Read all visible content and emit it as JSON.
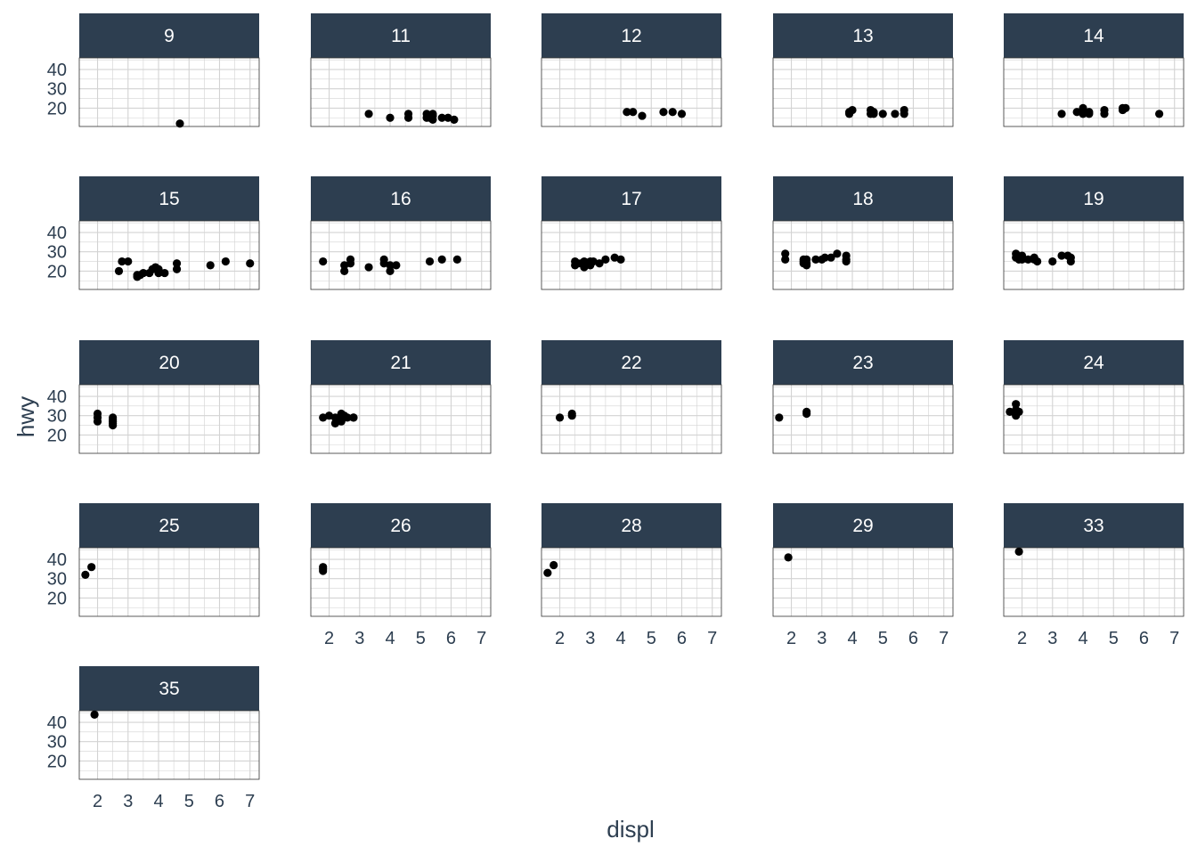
{
  "chart_data": {
    "type": "scatter",
    "facet_by": "",
    "xlabel": "displ",
    "ylabel": "hwy",
    "xlim": [
      1.4,
      7.3
    ],
    "ylim": [
      10.5,
      46
    ],
    "x_ticks": [
      2,
      3,
      4,
      5,
      6,
      7
    ],
    "y_ticks": [
      20,
      30,
      40
    ],
    "grid": true,
    "colors": {
      "strip": "#2d3e50",
      "strip_text": "#ffffff",
      "grid": "#d3d3d3",
      "point": "#000000",
      "text": "#2d3e50"
    },
    "panels": [
      {
        "label": "9",
        "points": [
          [
            4.7,
            12
          ]
        ]
      },
      {
        "label": "11",
        "points": [
          [
            3.3,
            17
          ],
          [
            4.0,
            15
          ],
          [
            4.6,
            15
          ],
          [
            4.6,
            17
          ],
          [
            5.2,
            17
          ],
          [
            5.3,
            15
          ],
          [
            5.3,
            16
          ],
          [
            5.4,
            17
          ],
          [
            5.7,
            15
          ],
          [
            5.9,
            15
          ],
          [
            6.1,
            14
          ],
          [
            5.4,
            14
          ],
          [
            5.2,
            15
          ],
          [
            5.4,
            16
          ]
        ]
      },
      {
        "label": "12",
        "points": [
          [
            4.2,
            18
          ],
          [
            4.4,
            18
          ],
          [
            4.7,
            16
          ],
          [
            5.4,
            18
          ],
          [
            5.7,
            18
          ],
          [
            6.0,
            17
          ]
        ]
      },
      {
        "label": "13",
        "points": [
          [
            3.9,
            17
          ],
          [
            4.0,
            19
          ],
          [
            4.6,
            17
          ],
          [
            4.6,
            19
          ],
          [
            4.7,
            17
          ],
          [
            5.0,
            17
          ],
          [
            5.4,
            17
          ],
          [
            5.7,
            17
          ],
          [
            5.7,
            19
          ],
          [
            3.9,
            18
          ],
          [
            4.7,
            18
          ]
        ]
      },
      {
        "label": "14",
        "points": [
          [
            3.3,
            17
          ],
          [
            3.8,
            18
          ],
          [
            4.0,
            19
          ],
          [
            4.0,
            17
          ],
          [
            4.2,
            17
          ],
          [
            4.7,
            17
          ],
          [
            4.7,
            19
          ],
          [
            5.3,
            20
          ],
          [
            5.4,
            20
          ],
          [
            6.5,
            17
          ],
          [
            4.0,
            20
          ],
          [
            4.2,
            18
          ],
          [
            5.3,
            19
          ]
        ]
      },
      {
        "label": "15",
        "points": [
          [
            2.7,
            20
          ],
          [
            2.8,
            25
          ],
          [
            3.0,
            25
          ],
          [
            3.3,
            17
          ],
          [
            3.4,
            18
          ],
          [
            3.5,
            19
          ],
          [
            3.8,
            21
          ],
          [
            3.9,
            22
          ],
          [
            4.0,
            19
          ],
          [
            4.0,
            20
          ],
          [
            4.2,
            19
          ],
          [
            4.6,
            21
          ],
          [
            4.6,
            24
          ],
          [
            5.7,
            23
          ],
          [
            6.2,
            25
          ],
          [
            7.0,
            24
          ],
          [
            3.3,
            18
          ],
          [
            4.0,
            21
          ],
          [
            3.7,
            19
          ]
        ]
      },
      {
        "label": "16",
        "points": [
          [
            1.8,
            25
          ],
          [
            2.5,
            20
          ],
          [
            2.5,
            23
          ],
          [
            2.7,
            24
          ],
          [
            2.7,
            26
          ],
          [
            3.3,
            22
          ],
          [
            3.8,
            26
          ],
          [
            3.8,
            24
          ],
          [
            4.0,
            23
          ],
          [
            4.0,
            20
          ],
          [
            4.2,
            23
          ],
          [
            5.3,
            25
          ],
          [
            5.7,
            26
          ],
          [
            6.2,
            26
          ]
        ]
      },
      {
        "label": "17",
        "points": [
          [
            2.5,
            23
          ],
          [
            2.5,
            25
          ],
          [
            2.7,
            24
          ],
          [
            2.8,
            25
          ],
          [
            3.0,
            23
          ],
          [
            3.0,
            25
          ],
          [
            3.3,
            24
          ],
          [
            3.5,
            26
          ],
          [
            3.8,
            27
          ],
          [
            4.0,
            26
          ],
          [
            2.8,
            22
          ],
          [
            3.1,
            25
          ],
          [
            2.6,
            24
          ]
        ]
      },
      {
        "label": "18",
        "points": [
          [
            1.8,
            29
          ],
          [
            1.8,
            26
          ],
          [
            2.4,
            26
          ],
          [
            2.4,
            24
          ],
          [
            2.5,
            26
          ],
          [
            2.5,
            23
          ],
          [
            2.8,
            26
          ],
          [
            3.0,
            26
          ],
          [
            3.1,
            27
          ],
          [
            3.3,
            27
          ],
          [
            3.5,
            29
          ],
          [
            3.8,
            28
          ],
          [
            3.8,
            25
          ],
          [
            3.8,
            26
          ],
          [
            2.4,
            25
          ],
          [
            2.5,
            24
          ]
        ]
      },
      {
        "label": "19",
        "points": [
          [
            1.8,
            29
          ],
          [
            1.8,
            27
          ],
          [
            1.9,
            26
          ],
          [
            2.0,
            28
          ],
          [
            2.2,
            26
          ],
          [
            2.4,
            26
          ],
          [
            2.5,
            25
          ],
          [
            3.0,
            25
          ],
          [
            3.3,
            28
          ],
          [
            3.5,
            28
          ],
          [
            3.6,
            27
          ],
          [
            3.6,
            25
          ],
          [
            2.0,
            26
          ],
          [
            2.4,
            27
          ]
        ]
      },
      {
        "label": "20",
        "points": [
          [
            2.0,
            31
          ],
          [
            2.0,
            29
          ],
          [
            2.0,
            27
          ],
          [
            2.5,
            29
          ],
          [
            2.5,
            28
          ],
          [
            2.5,
            27
          ],
          [
            2.5,
            25
          ],
          [
            2.5,
            26
          ]
        ]
      },
      {
        "label": "21",
        "points": [
          [
            1.8,
            29
          ],
          [
            2.0,
            30
          ],
          [
            2.2,
            29
          ],
          [
            2.3,
            28
          ],
          [
            2.4,
            31
          ],
          [
            2.5,
            29
          ],
          [
            2.5,
            30
          ],
          [
            2.8,
            29
          ],
          [
            2.8,
            29
          ],
          [
            2.2,
            26
          ],
          [
            2.4,
            27
          ],
          [
            2.6,
            29
          ]
        ]
      },
      {
        "label": "22",
        "points": [
          [
            2.0,
            29
          ],
          [
            2.4,
            31
          ],
          [
            2.4,
            30
          ]
        ]
      },
      {
        "label": "23",
        "points": [
          [
            1.6,
            29
          ],
          [
            2.5,
            32
          ],
          [
            2.5,
            31
          ]
        ]
      },
      {
        "label": "24",
        "points": [
          [
            1.6,
            32
          ],
          [
            1.8,
            36
          ],
          [
            1.8,
            33
          ],
          [
            1.8,
            30
          ],
          [
            1.9,
            32
          ],
          [
            1.8,
            31
          ]
        ]
      },
      {
        "label": "25",
        "points": [
          [
            1.6,
            32
          ],
          [
            1.8,
            36
          ]
        ]
      },
      {
        "label": "26",
        "points": [
          [
            1.8,
            35
          ],
          [
            1.8,
            34
          ],
          [
            1.8,
            36
          ]
        ]
      },
      {
        "label": "28",
        "points": [
          [
            1.6,
            33
          ],
          [
            1.8,
            37
          ]
        ]
      },
      {
        "label": "29",
        "points": [
          [
            1.9,
            41
          ]
        ]
      },
      {
        "label": "33",
        "points": [
          [
            1.9,
            44
          ]
        ]
      },
      {
        "label": "35",
        "points": [
          [
            1.9,
            44
          ]
        ]
      }
    ]
  }
}
